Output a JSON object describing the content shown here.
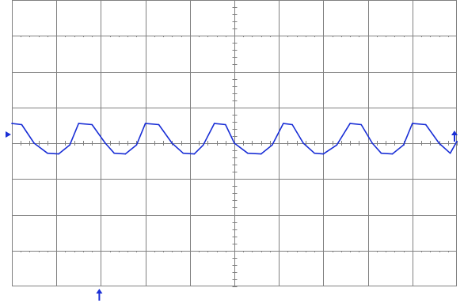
{
  "chart_data": {
    "type": "line",
    "title": "",
    "xlabel": "",
    "ylabel": "",
    "divisions": {
      "horizontal": 10,
      "vertical": 8
    },
    "xlim": [
      0,
      10
    ],
    "ylim": [
      -4,
      4
    ],
    "grid": true,
    "x": [
      0.0,
      0.22,
      0.5,
      0.8,
      1.05,
      1.3,
      1.5,
      1.8,
      2.1,
      2.3,
      2.55,
      2.8,
      3.0,
      3.3,
      3.6,
      3.85,
      4.1,
      4.3,
      4.55,
      4.8,
      5.0,
      5.3,
      5.6,
      5.85,
      6.1,
      6.3,
      6.55,
      6.8,
      7.0,
      7.3,
      7.6,
      7.85,
      8.1,
      8.3,
      8.55,
      8.8,
      9.0,
      9.3,
      9.6,
      9.85,
      10.0
    ],
    "series": [
      {
        "values": [
          0.55,
          0.52,
          0.0,
          -0.28,
          -0.3,
          -0.05,
          0.55,
          0.52,
          0.0,
          -0.28,
          -0.3,
          -0.05,
          0.55,
          0.52,
          0.0,
          -0.28,
          -0.3,
          -0.05,
          0.55,
          0.52,
          0.0,
          -0.28,
          -0.3,
          -0.05,
          0.55,
          0.52,
          0.0,
          -0.28,
          -0.3,
          -0.05,
          0.55,
          0.52,
          0.0,
          -0.28,
          -0.3,
          -0.05,
          0.55,
          0.52,
          0.0,
          -0.28,
          0.05
        ],
        "color": "#1a2fd6"
      }
    ],
    "markers": {
      "trigger_level_div": 0.0,
      "trigger_position_div": 2.0,
      "channel_ground_div": 0.0
    }
  },
  "colors": {
    "grid": "#808080",
    "background": "#ffffff",
    "trace": "#1a2fd6",
    "marker": "#1a2fd6"
  }
}
